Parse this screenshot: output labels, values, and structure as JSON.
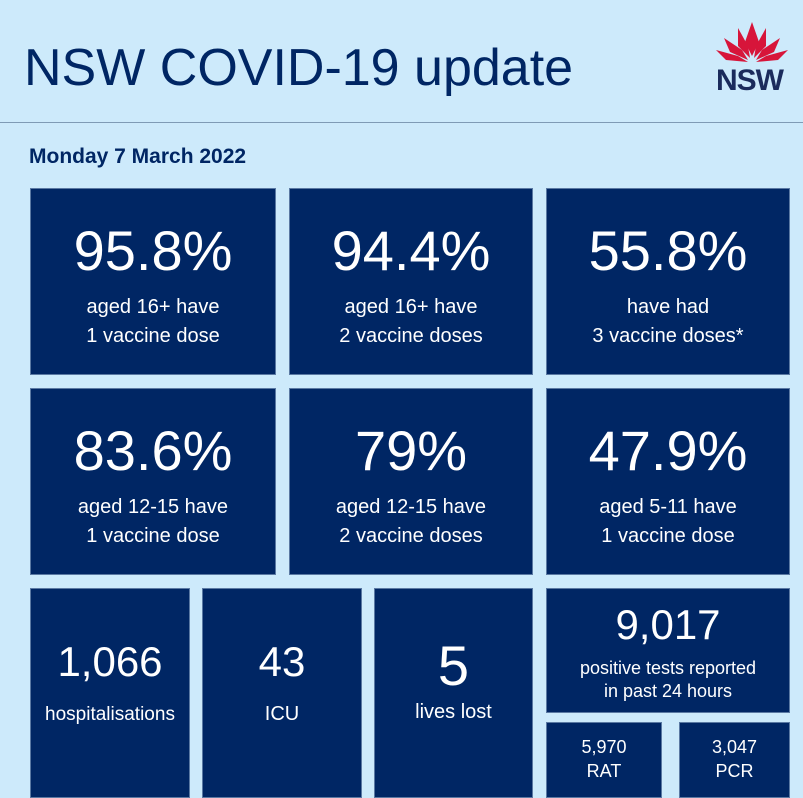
{
  "header": {
    "title": "NSW COVID-19 update",
    "logo_text": "NSW",
    "date": "Monday 7 March 2022"
  },
  "colors": {
    "background": "#cdeafb",
    "tile": "#002664",
    "waratah": "#d7153a"
  },
  "vaccination": [
    {
      "value": "95.8%",
      "line1": "aged 16+ have",
      "line2": "1 vaccine dose"
    },
    {
      "value": "94.4%",
      "line1": "aged 16+ have",
      "line2": "2 vaccine doses"
    },
    {
      "value": "55.8%",
      "line1": "have had",
      "line2": "3 vaccine doses*"
    },
    {
      "value": "83.6%",
      "line1": "aged 12-15 have",
      "line2": "1 vaccine dose"
    },
    {
      "value": "79%",
      "line1": "aged 12-15 have",
      "line2": "2 vaccine doses"
    },
    {
      "value": "47.9%",
      "line1": "aged 5-11 have",
      "line2": "1 vaccine dose"
    }
  ],
  "stats": [
    {
      "value": "1,066",
      "label": "hospitalisations"
    },
    {
      "value": "43",
      "label": "ICU"
    },
    {
      "value": "5",
      "label": "lives lost"
    }
  ],
  "tests": {
    "value": "9,017",
    "line1": "positive tests reported",
    "line2": "in past 24 hours",
    "rat": {
      "value": "5,970",
      "label": "RAT"
    },
    "pcr": {
      "value": "3,047",
      "label": "PCR"
    }
  }
}
